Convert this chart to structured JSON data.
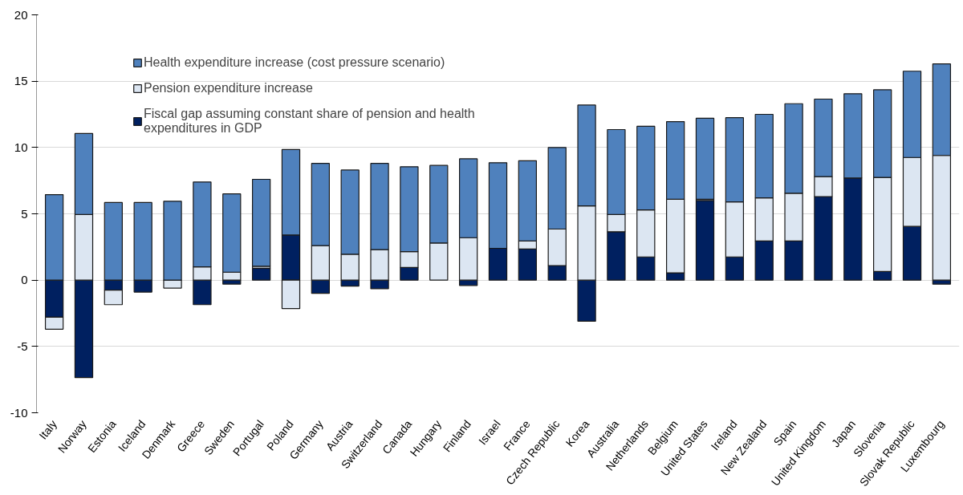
{
  "chart_data": {
    "type": "bar",
    "stacked": true,
    "categories": [
      "Italy",
      "Norway",
      "Estonia",
      "Iceland",
      "Denmark",
      "Greece",
      "Sweden",
      "Portugal",
      "Poland",
      "Germany",
      "Austria",
      "Switzerland",
      "Canada",
      "Hungary",
      "Finland",
      "Israel",
      "France",
      "Czech Republic",
      "Korea",
      "Australia",
      "Netherlands",
      "Belgium",
      "United States",
      "Ireland",
      "New Zealand",
      "Spain",
      "United Kingdom",
      "Japan",
      "Slovenia",
      "Slovak Republic",
      "Luxembourg"
    ],
    "series": [
      {
        "name": "Fiscal gap assuming constant share of pension and health expenditures in GDP",
        "color": "#002060",
        "values": [
          -2.8,
          -7.35,
          -0.75,
          -0.9,
          0,
          -1.85,
          -0.3,
          0.9,
          3.4,
          -1.0,
          -0.45,
          -0.65,
          0.95,
          null,
          -0.4,
          2.4,
          2.35,
          1.1,
          -3.1,
          3.65,
          1.75,
          0.55,
          6.0,
          1.75,
          2.95,
          2.95,
          6.3,
          7.7,
          0.65,
          4.05,
          -0.3
        ]
      },
      {
        "name": "Pension expenditure increase",
        "color": "#dce6f2",
        "values": [
          -0.9,
          4.95,
          -1.1,
          0,
          -0.6,
          1.0,
          0.6,
          0.15,
          -2.15,
          2.6,
          1.95,
          2.3,
          1.2,
          2.8,
          3.2,
          0,
          0.6,
          2.75,
          5.6,
          1.3,
          3.55,
          5.55,
          0.1,
          4.15,
          3.25,
          3.6,
          1.5,
          0,
          7.1,
          5.2,
          9.4
        ]
      },
      {
        "name": "Health expenditure increase (cost pressure scenario)",
        "color": "#4f81bd",
        "values": [
          6.45,
          6.1,
          5.85,
          5.85,
          5.95,
          6.4,
          5.9,
          6.55,
          6.45,
          6.2,
          6.35,
          6.5,
          6.4,
          5.85,
          5.95,
          6.45,
          6.05,
          6.15,
          7.6,
          6.4,
          6.3,
          5.85,
          6.1,
          6.35,
          6.3,
          6.75,
          5.85,
          6.35,
          6.6,
          6.5,
          6.9
        ]
      }
    ],
    "ylim": [
      -10,
      20
    ],
    "yticks": [
      -10,
      -5,
      0,
      5,
      10,
      15,
      20
    ],
    "grid": "y",
    "legend": "top left"
  }
}
